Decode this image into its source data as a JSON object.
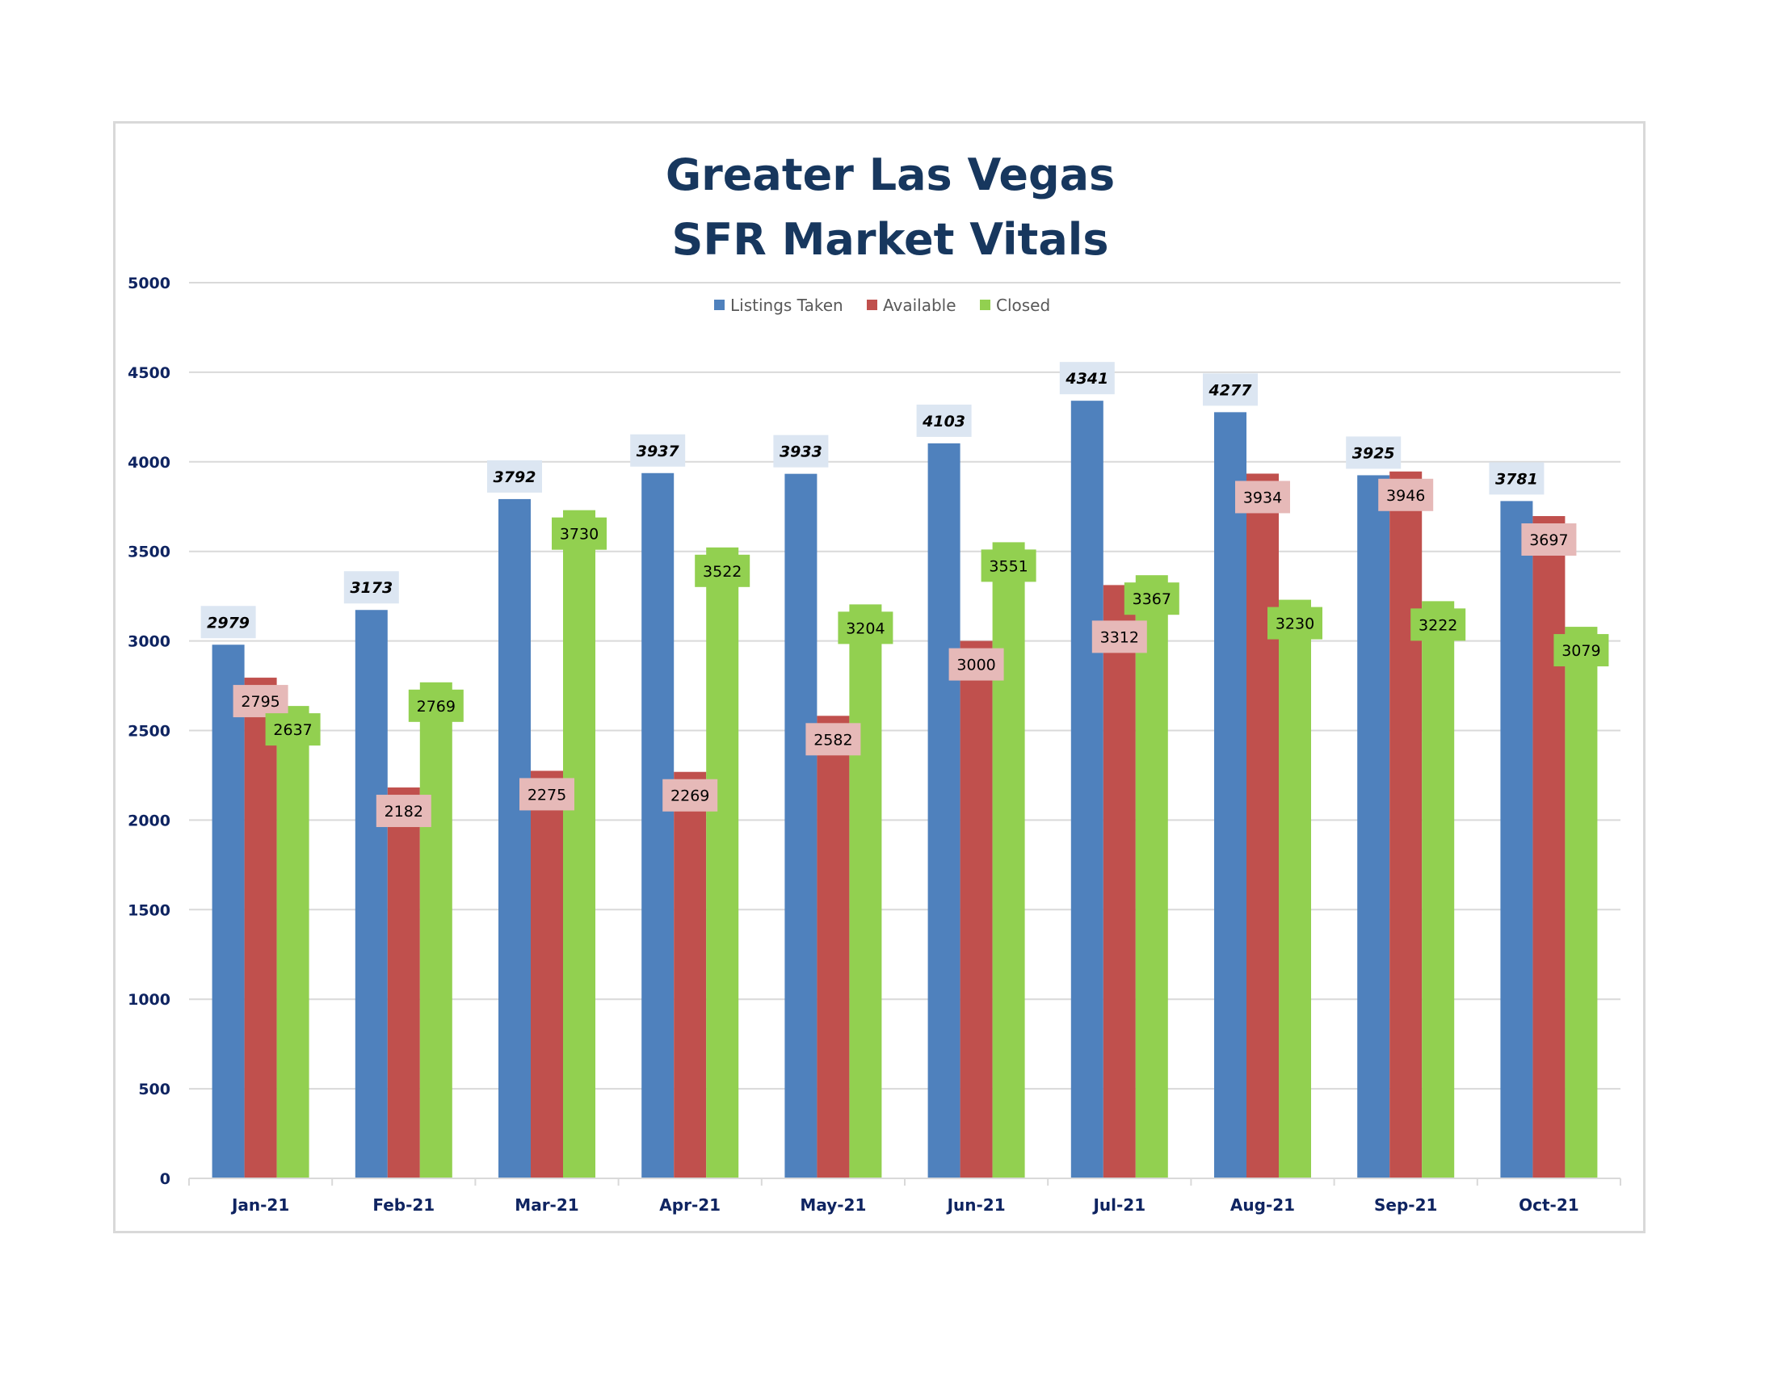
{
  "chart_data": {
    "type": "bar",
    "title": [
      "Greater Las Vegas",
      "SFR Market Vitals"
    ],
    "xlabel": "",
    "ylabel": "",
    "ylim": [
      0,
      5000
    ],
    "yticks": [
      0,
      500,
      1000,
      1500,
      2000,
      2500,
      3000,
      3500,
      4000,
      4500,
      5000
    ],
    "ytick_labels": [
      "0",
      "500",
      "1000",
      "1500",
      "2000",
      "2500",
      "3000",
      "3500",
      "4000",
      "4500",
      "5000"
    ],
    "grid": true,
    "legend_position": "top-center",
    "categories": [
      "Jan-21",
      "Feb-21",
      "Mar-21",
      "Apr-21",
      "May-21",
      "Jun-21",
      "Jul-21",
      "Aug-21",
      "Sep-21",
      "Oct-21"
    ],
    "series": [
      {
        "name": "Listings Taken",
        "color": "#4f81bd",
        "label_bg": "#dce6f2",
        "values": [
          2979,
          3173,
          3792,
          3937,
          3933,
          4103,
          4341,
          4277,
          3925,
          3781
        ],
        "labels": [
          "2979",
          "3173",
          "3792",
          "3937",
          "3933",
          "4103",
          "4341",
          "4277",
          "3925",
          "3781"
        ]
      },
      {
        "name": "Available",
        "color": "#c0504d",
        "label_bg": "#e6b9b8",
        "values": [
          2795,
          2182,
          2275,
          2269,
          2582,
          3000,
          3312,
          3934,
          3946,
          3697
        ],
        "labels": [
          "2795",
          "2182",
          "2275",
          "2269",
          "2582",
          "3000",
          "3312",
          "3934",
          "3946",
          "3697"
        ]
      },
      {
        "name": "Closed",
        "color": "#92d050",
        "label_bg": "#92d050",
        "values": [
          2637,
          2769,
          3730,
          3522,
          3204,
          3551,
          3367,
          3230,
          3222,
          3079
        ],
        "labels": [
          "2637",
          "2769",
          "3730",
          "3522",
          "3204",
          "3551",
          "3367",
          "3230",
          "3222",
          "3079"
        ]
      }
    ]
  }
}
